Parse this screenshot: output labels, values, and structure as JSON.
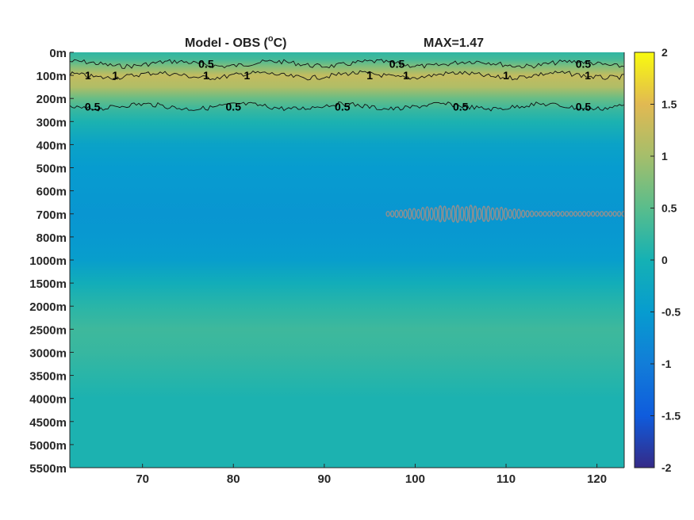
{
  "chart_data": {
    "type": "heatmap",
    "title": "Model - OBS (",
    "title_unit": "o",
    "title_suffix": "C)",
    "max_label": "MAX=1.47",
    "xlabel": "",
    "ylabel": "",
    "x_ticks": [
      "70",
      "80",
      "90",
      "100",
      "110",
      "120"
    ],
    "x_tick_values": [
      70,
      80,
      90,
      100,
      110,
      120
    ],
    "xlim": [
      62,
      123
    ],
    "y_ticks": [
      "0m",
      "100m",
      "200m",
      "300m",
      "400m",
      "500m",
      "600m",
      "700m",
      "800m",
      "1000m",
      "1500m",
      "2000m",
      "2500m",
      "3000m",
      "3500m",
      "4000m",
      "4500m",
      "5000m",
      "5500m"
    ],
    "y_depths": [
      0,
      100,
      200,
      300,
      400,
      500,
      600,
      700,
      800,
      1000,
      1500,
      2000,
      2500,
      3000,
      3500,
      4000,
      4500,
      5000,
      5500
    ],
    "colorbar": {
      "ticks": [
        "2",
        "1.5",
        "1",
        "0.5",
        "0",
        "-0.5",
        "-1",
        "-1.5",
        "-2"
      ],
      "values": [
        2,
        1.5,
        1,
        0.5,
        0,
        -0.5,
        -1,
        -1.5,
        -2
      ],
      "range": [
        -2,
        2
      ],
      "colormap": "parula"
    },
    "profile": [
      {
        "depth": 0,
        "value": 0.2
      },
      {
        "depth": 30,
        "value": 0.35
      },
      {
        "depth": 60,
        "value": 0.75
      },
      {
        "depth": 100,
        "value": 1.25
      },
      {
        "depth": 150,
        "value": 1.1
      },
      {
        "depth": 200,
        "value": 0.6
      },
      {
        "depth": 250,
        "value": 0.25
      },
      {
        "depth": 300,
        "value": 0.05
      },
      {
        "depth": 400,
        "value": -0.35
      },
      {
        "depth": 500,
        "value": -0.5
      },
      {
        "depth": 600,
        "value": -0.55
      },
      {
        "depth": 700,
        "value": -0.6
      },
      {
        "depth": 800,
        "value": -0.55
      },
      {
        "depth": 1000,
        "value": -0.45
      },
      {
        "depth": 1500,
        "value": -0.1
      },
      {
        "depth": 2000,
        "value": 0.15
      },
      {
        "depth": 2500,
        "value": 0.3
      },
      {
        "depth": 3000,
        "value": 0.25
      },
      {
        "depth": 3500,
        "value": 0.15
      },
      {
        "depth": 4000,
        "value": 0.05
      },
      {
        "depth": 4500,
        "value": 0.05
      },
      {
        "depth": 5000,
        "value": 0.05
      },
      {
        "depth": 5500,
        "value": 0.05
      }
    ],
    "contours": [
      {
        "level": 0.5,
        "depth": 50,
        "labels": [
          {
            "x": 77,
            "text": "0.5"
          },
          {
            "x": 98,
            "text": "0.5"
          },
          {
            "x": 118.5,
            "text": "0.5"
          }
        ]
      },
      {
        "level": 1,
        "depth": 100,
        "labels": [
          {
            "x": 64,
            "text": "1"
          },
          {
            "x": 67,
            "text": "1"
          },
          {
            "x": 77,
            "text": "1"
          },
          {
            "x": 81.5,
            "text": "1"
          },
          {
            "x": 95,
            "text": "1"
          },
          {
            "x": 99,
            "text": "1"
          },
          {
            "x": 110,
            "text": "1"
          },
          {
            "x": 119,
            "text": "1"
          }
        ]
      },
      {
        "level": 0.5,
        "depth": 235,
        "labels": [
          {
            "x": 64.5,
            "text": "0.5"
          },
          {
            "x": 80,
            "text": "0.5"
          },
          {
            "x": 92,
            "text": "0.5"
          },
          {
            "x": 105,
            "text": "0.5"
          },
          {
            "x": 118.5,
            "text": "0.5"
          }
        ]
      }
    ],
    "marker_band": {
      "depth": 700,
      "x_start": 97,
      "x_end": 123,
      "color": "#909090"
    }
  }
}
